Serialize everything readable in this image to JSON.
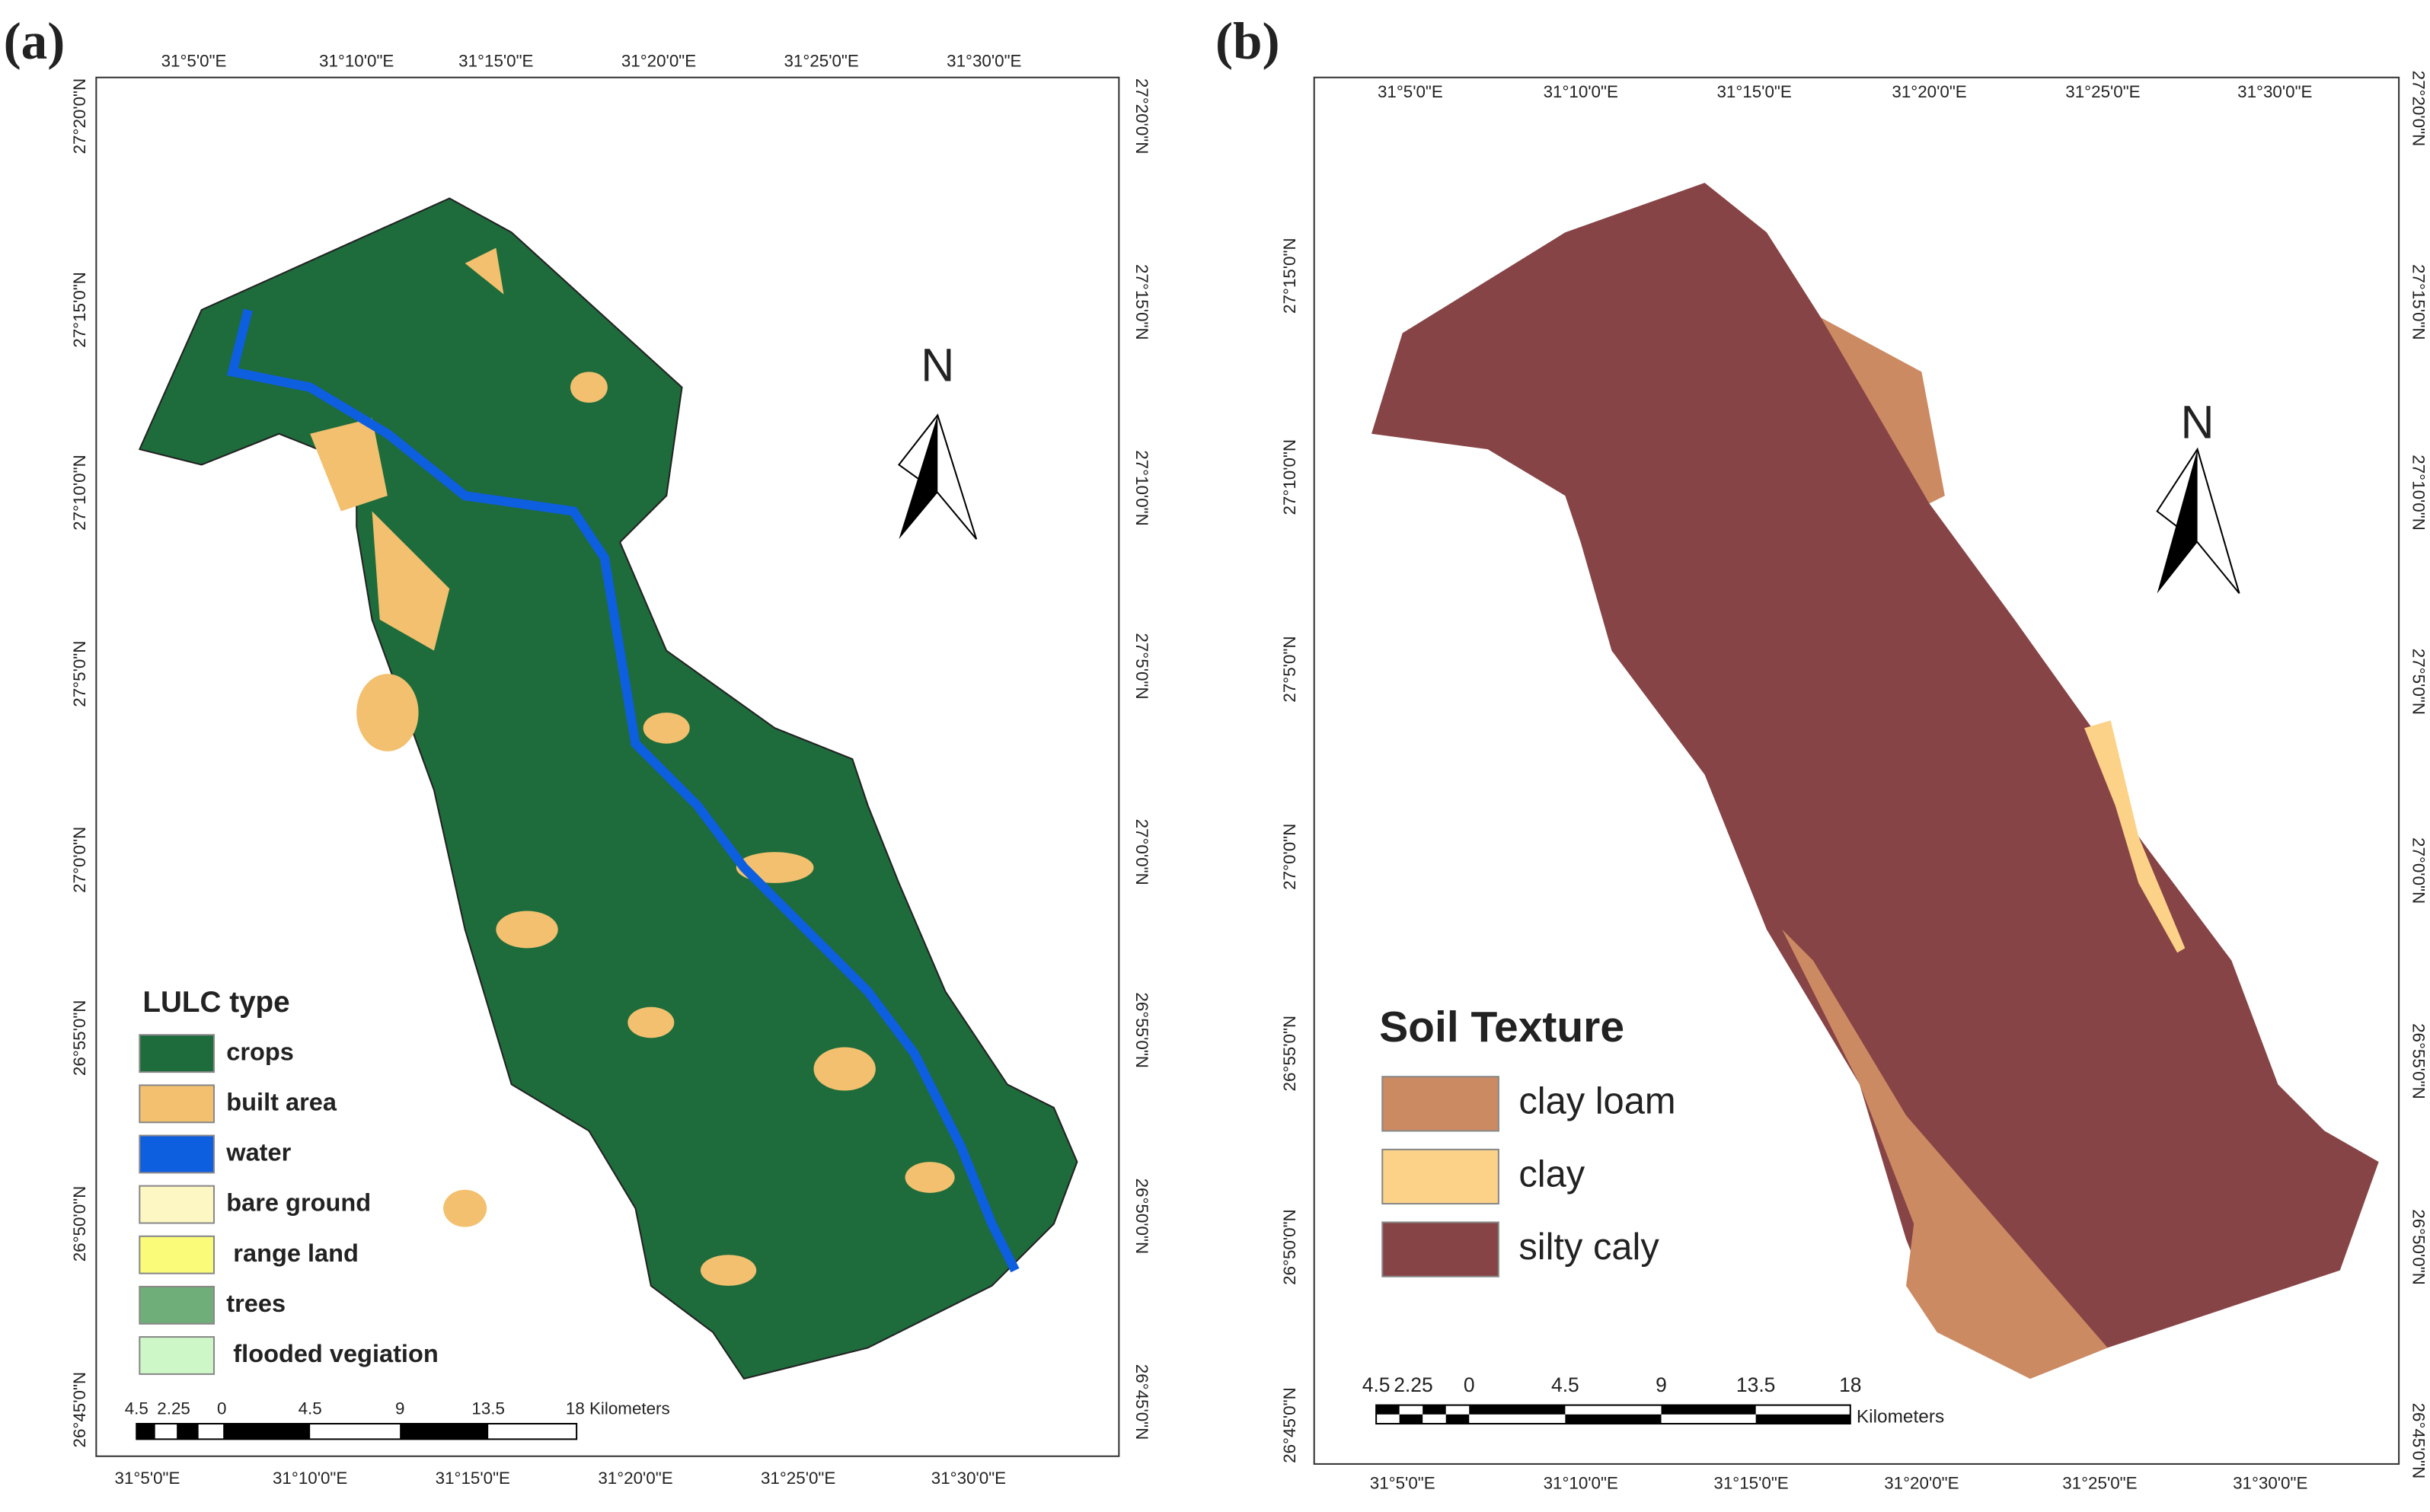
{
  "panels": [
    {
      "label": "(a)",
      "top_ticks": [
        "31°5'0\"E",
        "31°10'0\"E",
        "31°15'0\"E",
        "31°20'0\"E",
        "31°25'0\"E",
        "31°30'0\"E"
      ],
      "bottom_ticks": [
        "31°5'0\"E",
        "31°10'0\"E",
        "31°15'0\"E",
        "31°20'0\"E",
        "31°25'0\"E",
        "31°30'0\"E"
      ],
      "left_ticks": [
        "27°20'0\"N",
        "27°15'0\"N",
        "27°10'0\"N",
        "27°5'0\"N",
        "27°0'0\"N",
        "26°55'0\"N",
        "26°50'0\"N",
        "26°45'0\"N"
      ],
      "right_ticks": [
        "27°20'0\"N",
        "27°15'0\"N",
        "27°10'0\"N",
        "27°5'0\"N",
        "27°0'0\"N",
        "26°55'0\"N",
        "26°50'0\"N",
        "26°45'0\"N"
      ],
      "north": "N",
      "legend": {
        "title": "LULC type",
        "items": [
          {
            "label": "crops",
            "color": "#1e6b3c"
          },
          {
            "label": "built area",
            "color": "#f2c06e"
          },
          {
            "label": "water",
            "color": "#0e5ee0"
          },
          {
            "label": "bare ground",
            "color": "#fdf7c3"
          },
          {
            "label": " range land",
            "color": "#fbfb7a"
          },
          {
            "label": "trees",
            "color": "#6fae78"
          },
          {
            "label": " flooded vegiation",
            "color": "#cdf7c6"
          }
        ]
      },
      "scale": {
        "labels": [
          "4.5",
          "2.25",
          "0",
          "4.5",
          "9",
          "13.5",
          "18 Kilometers"
        ]
      }
    },
    {
      "label": "(b)",
      "top_ticks": [
        "31°5'0\"E",
        "31°10'0\"E",
        "31°15'0\"E",
        "31°20'0\"E",
        "31°25'0\"E",
        "31°30'0\"E"
      ],
      "bottom_ticks": [
        "31°5'0\"E",
        "31°10'0\"E",
        "31°15'0\"E",
        "31°20'0\"E",
        "31°25'0\"E",
        "31°30'0\"E"
      ],
      "left_ticks": [
        "27°15'0\"N",
        "27°10'0\"N",
        "27°5'0\"N",
        "27°0'0\"N",
        "26°55'0\"N",
        "26°50'0\"N",
        "26°45'0\"N"
      ],
      "right_ticks": [
        "27°20'0\"N",
        "27°15'0\"N",
        "27°10'0\"N",
        "27°5'0\"N",
        "27°0'0\"N",
        "26°55'0\"N",
        "26°50'0\"N",
        "26°45'0\"N"
      ],
      "north": "N",
      "legend": {
        "title": "Soil Texture",
        "items": [
          {
            "label": "clay loam",
            "color": "#cc8a63"
          },
          {
            "label": "clay",
            "color": "#fbd288"
          },
          {
            "label": "silty caly",
            "color": "#874446"
          }
        ]
      },
      "scale": {
        "labels": [
          "4.5",
          "2.25",
          "0",
          "4.5",
          "9",
          "13.5",
          "18"
        ],
        "unit": "Kilometers"
      }
    }
  ]
}
